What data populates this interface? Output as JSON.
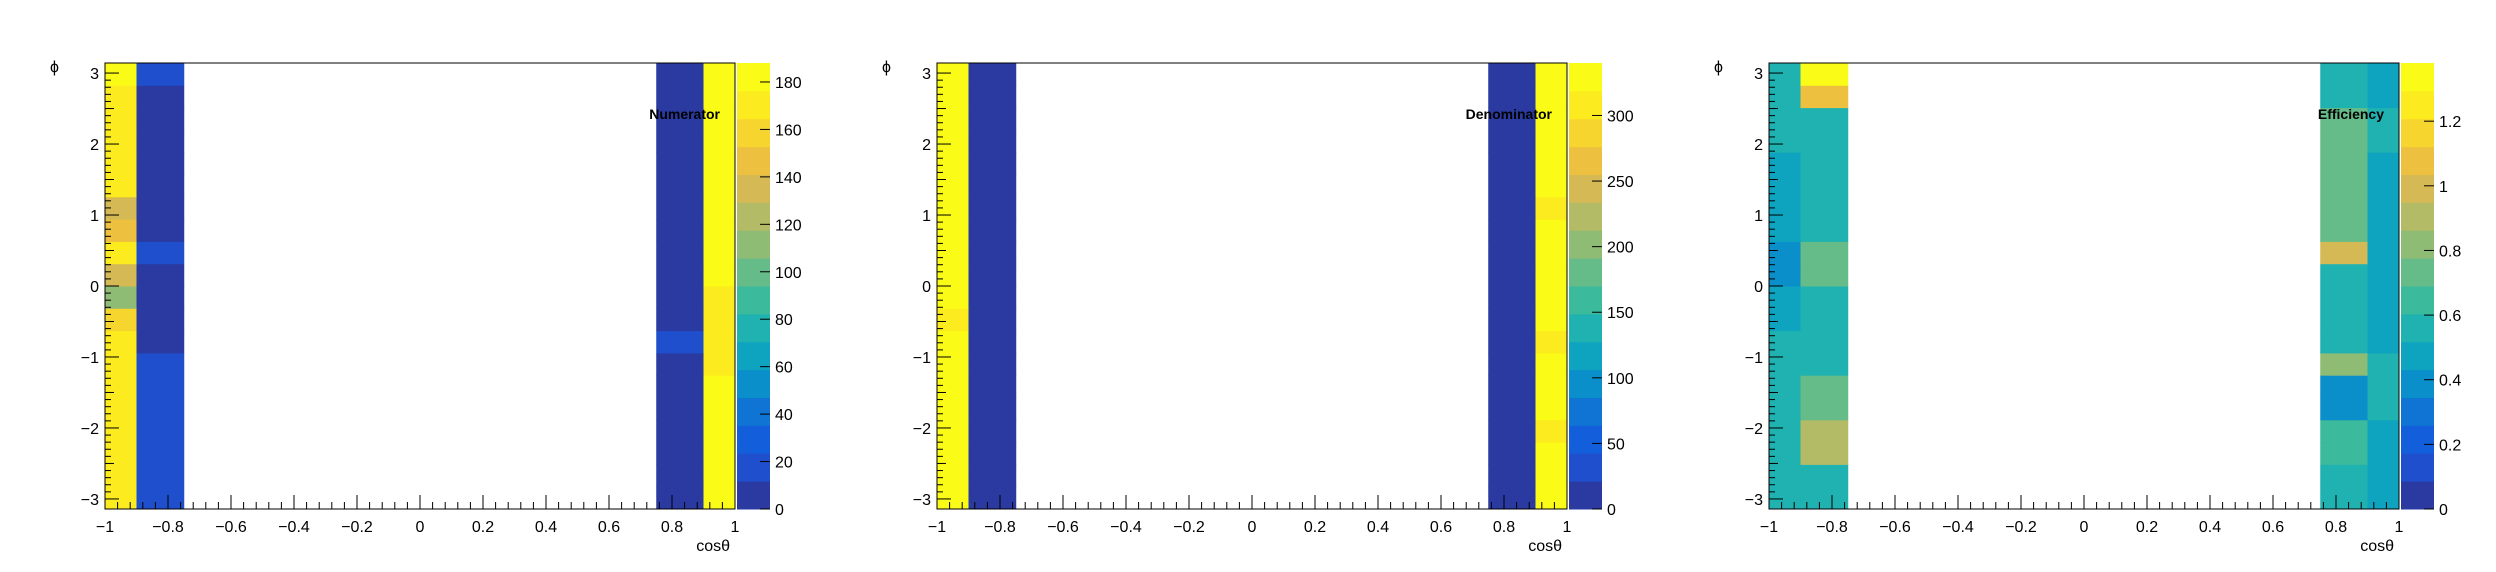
{
  "colors": {
    "palette": [
      "#2a3aa0",
      "#1f4fcc",
      "#135fdb",
      "#0f74d4",
      "#0a8fca",
      "#0ea4c0",
      "#1fb2b0",
      "#3bba9c",
      "#65bc88",
      "#8fbc74",
      "#b4bb66",
      "#d4b955",
      "#edc040",
      "#f6d52e",
      "#fbeb1f",
      "#fafb16"
    ]
  },
  "chart_data": [
    {
      "type": "heatmap",
      "title": "Numerator",
      "xlabel": "cosθ",
      "ylabel": "ϕ",
      "xlim": [
        -1,
        1
      ],
      "ylim": [
        -3.14159,
        3.14159
      ],
      "zlim": [
        0,
        188
      ],
      "x_edges": [
        -1.0,
        -0.9,
        -0.75,
        0.75,
        0.9,
        1.0
      ],
      "rows": 20,
      "x_ticks": [
        "−1",
        "−0.8",
        "−0.6",
        "−0.4",
        "−0.2",
        "0",
        "0.2",
        "0.4",
        "0.6",
        "0.8",
        "1"
      ],
      "y_ticks": [
        "−3",
        "−2",
        "−1",
        "0",
        "1",
        "2",
        "3"
      ],
      "colorbar_ticks": [
        "0",
        "20",
        "40",
        "60",
        "80",
        "100",
        "120",
        "140",
        "160",
        "180"
      ],
      "grid": false,
      "values": [
        [
          170,
          15,
          0,
          10,
          180
        ],
        [
          170,
          15,
          0,
          10,
          180
        ],
        [
          165,
          15,
          0,
          10,
          180
        ],
        [
          165,
          15,
          0,
          10,
          180
        ],
        [
          175,
          15,
          0,
          10,
          180
        ],
        [
          175,
          15,
          0,
          10,
          180
        ],
        [
          170,
          15,
          0,
          10,
          170
        ],
        [
          170,
          10,
          0,
          15,
          170
        ],
        [
          160,
          10,
          0,
          10,
          175
        ],
        [
          110,
          10,
          0,
          10,
          175
        ],
        [
          140,
          10,
          0,
          10,
          180
        ],
        [
          165,
          15,
          0,
          10,
          180
        ],
        [
          150,
          10,
          0,
          10,
          180
        ],
        [
          130,
          10,
          0,
          10,
          180
        ],
        [
          170,
          10,
          0,
          10,
          180
        ],
        [
          165,
          10,
          0,
          10,
          180
        ],
        [
          175,
          10,
          0,
          10,
          180
        ],
        [
          170,
          10,
          0,
          10,
          180
        ],
        [
          170,
          10,
          0,
          10,
          180
        ],
        [
          180,
          15,
          0,
          10,
          180
        ]
      ]
    },
    {
      "type": "heatmap",
      "title": "Denominator",
      "xlabel": "cosθ",
      "ylabel": "ϕ",
      "xlim": [
        -1,
        1
      ],
      "ylim": [
        -3.14159,
        3.14159
      ],
      "zlim": [
        0,
        340
      ],
      "x_edges": [
        -1.0,
        -0.9,
        -0.75,
        0.75,
        0.9,
        1.0
      ],
      "rows": 20,
      "x_ticks": [
        "−1",
        "−0.8",
        "−0.6",
        "−0.4",
        "−0.2",
        "0",
        "0.2",
        "0.4",
        "0.6",
        "0.8",
        "1"
      ],
      "y_ticks": [
        "−3",
        "−2",
        "−1",
        "0",
        "1",
        "2",
        "3"
      ],
      "colorbar_ticks": [
        "0",
        "50",
        "100",
        "150",
        "200",
        "250",
        "300"
      ],
      "grid": false,
      "values": [
        [
          330,
          5,
          0,
          5,
          320
        ],
        [
          330,
          5,
          0,
          5,
          320
        ],
        [
          330,
          5,
          0,
          5,
          320
        ],
        [
          330,
          5,
          0,
          5,
          300
        ],
        [
          330,
          5,
          0,
          5,
          330
        ],
        [
          330,
          5,
          0,
          5,
          330
        ],
        [
          320,
          5,
          0,
          5,
          330
        ],
        [
          330,
          5,
          0,
          5,
          310
        ],
        [
          310,
          5,
          0,
          5,
          320
        ],
        [
          330,
          5,
          0,
          5,
          320
        ],
        [
          320,
          5,
          0,
          5,
          330
        ],
        [
          330,
          5,
          0,
          5,
          330
        ],
        [
          320,
          5,
          0,
          5,
          330
        ],
        [
          330,
          5,
          0,
          5,
          310
        ],
        [
          330,
          5,
          0,
          5,
          320
        ],
        [
          320,
          5,
          0,
          5,
          330
        ],
        [
          330,
          5,
          0,
          5,
          330
        ],
        [
          330,
          5,
          0,
          5,
          330
        ],
        [
          330,
          5,
          0,
          5,
          330
        ],
        [
          330,
          5,
          0,
          5,
          330
        ]
      ]
    },
    {
      "type": "heatmap",
      "title": "Efficiency",
      "xlabel": "cosθ",
      "ylabel": "ϕ",
      "xlim": [
        -1,
        1
      ],
      "ylim": [
        -3.14159,
        3.14159
      ],
      "zlim": [
        0,
        1.38
      ],
      "x_edges": [
        -1.0,
        -0.9,
        -0.75,
        0.75,
        0.9,
        1.0
      ],
      "rows": 20,
      "x_ticks": [
        "−1",
        "−0.8",
        "−0.6",
        "−0.4",
        "−0.2",
        "0",
        "0.2",
        "0.4",
        "0.6",
        "0.8",
        "1"
      ],
      "y_ticks": [
        "−3",
        "−2",
        "−1",
        "0",
        "1",
        "2",
        "3"
      ],
      "colorbar_ticks": [
        "0",
        "0.2",
        "0.4",
        "0.6",
        "0.8",
        "1",
        "1.2"
      ],
      "grid": false,
      "values": [
        [
          0.55,
          0.55,
          0,
          0.55,
          0.5
        ],
        [
          0.55,
          0.55,
          0,
          0.55,
          0.5
        ],
        [
          0.55,
          0.9,
          0,
          0.65,
          0.5
        ],
        [
          0.55,
          0.9,
          0,
          0.65,
          0.5
        ],
        [
          0.55,
          0.7,
          0,
          0.4,
          0.55
        ],
        [
          0.55,
          0.7,
          0,
          0.4,
          0.55
        ],
        [
          0.55,
          0.6,
          0,
          0.85,
          0.55
        ],
        [
          0.55,
          0.6,
          0,
          0.6,
          0.5
        ],
        [
          0.45,
          0.6,
          0,
          0.6,
          0.5
        ],
        [
          0.5,
          0.6,
          0,
          0.6,
          0.5
        ],
        [
          0.4,
          0.75,
          0,
          0.6,
          0.5
        ],
        [
          0.4,
          0.75,
          0,
          1.0,
          0.45
        ],
        [
          0.45,
          0.6,
          0,
          0.7,
          0.45
        ],
        [
          0.45,
          0.6,
          0,
          0.7,
          0.45
        ],
        [
          0.5,
          0.6,
          0,
          0.7,
          0.5
        ],
        [
          0.5,
          0.6,
          0,
          0.7,
          0.5
        ],
        [
          0.55,
          0.6,
          0,
          0.7,
          0.55
        ],
        [
          0.55,
          0.6,
          0,
          0.7,
          0.55
        ],
        [
          0.55,
          1.05,
          0,
          0.6,
          0.5
        ],
        [
          0.55,
          1.35,
          0,
          0.6,
          0.5
        ]
      ]
    }
  ]
}
